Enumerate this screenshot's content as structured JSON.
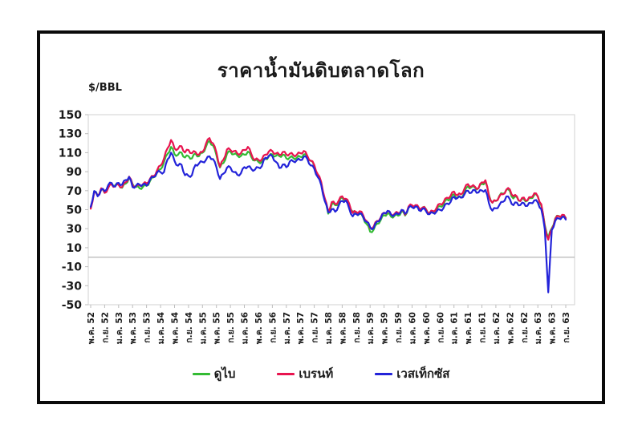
{
  "frame": {
    "title": "ราคาน้ำมันดิบตลาดโลก",
    "unit_label": "$/BBL"
  },
  "colors": {
    "dubai": "#33bb33",
    "brent": "#e8144f",
    "wti": "#2323d9",
    "frame_line": "#d2d2d2",
    "zero_line": "#aeaeae",
    "tick_line": "#bdbdbd",
    "text": "#1a1a1a",
    "box_border": "#0a0a0a"
  },
  "chart_data": {
    "type": "line",
    "title": "ราคาน้ำมันดิบตลาดโลก",
    "xlabel": "",
    "ylabel": "$/BBL",
    "ylim": [
      -50,
      150
    ],
    "y_ticks": [
      150,
      130,
      110,
      90,
      70,
      50,
      30,
      10,
      -10,
      -30,
      -50
    ],
    "grid": "zero-line-only",
    "legend_position": "bottom",
    "x_tick_every": 4,
    "x_tick_labels": [
      "พ.ค. 52",
      "ก.ย. 52",
      "ม.ค. 53",
      "พ.ค. 53",
      "ก.ย. 53",
      "ม.ค. 54",
      "พ.ค. 54",
      "ก.ย. 54",
      "ม.ค. 55",
      "พ.ค. 55",
      "ก.ย. 55",
      "ม.ค. 56",
      "พ.ค. 56",
      "ก.ย. 56",
      "ม.ค. 57",
      "พ.ค. 57",
      "ก.ย. 57",
      "ม.ค. 58",
      "พ.ค. 58",
      "ก.ย. 58",
      "ม.ค. 59",
      "พ.ค. 59",
      "ก.ย. 59",
      "ม.ค. 60",
      "พ.ค. 60",
      "ก.ย. 60",
      "ม.ค. 61",
      "พ.ค. 61",
      "ก.ย. 61",
      "ม.ค. 62",
      "พ.ค. 62",
      "ก.ย. 62",
      "ม.ค. 63",
      "พ.ค. 63",
      "ก.ย. 63"
    ],
    "series": [
      {
        "name": "ดูไบ",
        "color_key": "dubai",
        "values": [
          52.0,
          69.4,
          64.8,
          71.3,
          67.7,
          73.2,
          77.5,
          75.5,
          76.7,
          73.0,
          77.3,
          83.6,
          77.0,
          74.0,
          72.5,
          74.2,
          75.1,
          80.3,
          84.0,
          89.0,
          92.5,
          100.3,
          108.7,
          116.1,
          108.4,
          107.8,
          110.1,
          104.9,
          106.4,
          103.9,
          109.1,
          106.2,
          109.9,
          116.1,
          122.5,
          117.6,
          107.3,
          94.4,
          99.0,
          108.7,
          111.2,
          108.4,
          107.0,
          106.5,
          107.9,
          111.1,
          105.5,
          101.7,
          100.4,
          100.4,
          103.4,
          106.1,
          108.2,
          106.5,
          106.4,
          107.9,
          104.0,
          105.0,
          104.4,
          104.7,
          105.6,
          108.0,
          105.9,
          101.5,
          96.6,
          86.8,
          77.1,
          60.5,
          45.8,
          55.7,
          54.7,
          57.7,
          62.9,
          60.8,
          55.6,
          47.8,
          45.8,
          45.8,
          41.9,
          34.9,
          26.9,
          28.9,
          35.2,
          38.9,
          44.3,
          46.0,
          42.6,
          43.7,
          43.7,
          48.3,
          43.8,
          52.1,
          53.7,
          54.4,
          51.2,
          52.3,
          50.5,
          46.5,
          47.6,
          50.2,
          53.7,
          55.5,
          60.8,
          61.6,
          66.2,
          62.7,
          62.7,
          68.3,
          74.4,
          73.6,
          73.1,
          72.5,
          77.2,
          79.4,
          65.6,
          57.3,
          59.1,
          64.6,
          66.9,
          70.9,
          69.4,
          61.8,
          63.3,
          59.0,
          61.1,
          59.4,
          62.1,
          65.7,
          64.0,
          54.2,
          33.7,
          20.4,
          30.5,
          40.8,
          43.4,
          43.9,
          41.5
        ]
      },
      {
        "name": "เบรนท์",
        "color_key": "brent",
        "values": [
          51.0,
          68.6,
          64.4,
          72.5,
          67.7,
          72.8,
          76.7,
          74.5,
          76.2,
          73.8,
          78.8,
          84.8,
          75.9,
          74.8,
          75.6,
          77.1,
          77.8,
          82.7,
          85.3,
          91.4,
          96.5,
          104.0,
          114.6,
          123.3,
          114.5,
          114.0,
          116.8,
          110.2,
          112.8,
          109.5,
          110.7,
          107.9,
          110.7,
          119.3,
          125.4,
          119.8,
          110.3,
          95.2,
          102.6,
          113.4,
          112.9,
          111.7,
          109.1,
          109.5,
          112.9,
          116.1,
          108.5,
          102.3,
          102.6,
          102.9,
          107.9,
          111.3,
          111.6,
          109.1,
          107.8,
          110.8,
          108.1,
          108.9,
          107.5,
          107.8,
          109.5,
          111.8,
          106.8,
          101.6,
          97.1,
          87.4,
          79.0,
          62.3,
          47.8,
          58.1,
          55.9,
          59.5,
          64.1,
          61.5,
          56.6,
          46.5,
          47.6,
          48.4,
          44.3,
          38.0,
          30.7,
          32.2,
          38.2,
          41.6,
          46.7,
          48.3,
          44.9,
          45.7,
          46.6,
          49.5,
          44.7,
          53.3,
          54.6,
          54.9,
          51.6,
          52.3,
          50.3,
          46.4,
          48.5,
          51.7,
          56.2,
          57.5,
          62.7,
          64.4,
          69.1,
          65.3,
          66.0,
          72.1,
          76.9,
          74.4,
          74.2,
          72.5,
          78.9,
          81.0,
          64.7,
          57.4,
          59.4,
          64.0,
          66.1,
          71.2,
          71.3,
          64.2,
          63.9,
          59.0,
          62.8,
          59.7,
          63.2,
          67.3,
          63.7,
          55.7,
          32.0,
          18.4,
          29.4,
          40.3,
          43.2,
          44.7,
          40.9
        ]
      },
      {
        "name": "เวสเท็กซัส",
        "color_key": "wti",
        "values": [
          53.0,
          69.7,
          64.1,
          71.1,
          69.5,
          75.8,
          78.1,
          74.3,
          78.2,
          76.4,
          81.2,
          84.5,
          73.8,
          75.4,
          76.4,
          76.6,
          75.3,
          81.9,
          84.3,
          89.2,
          89.4,
          89.6,
          102.9,
          110.0,
          101.3,
          96.3,
          97.3,
          86.3,
          85.6,
          86.4,
          97.2,
          98.6,
          100.3,
          102.3,
          106.2,
          103.3,
          94.7,
          82.3,
          87.9,
          94.1,
          94.5,
          89.5,
          86.7,
          88.2,
          94.8,
          95.3,
          92.9,
          92.0,
          94.5,
          95.8,
          104.7,
          106.6,
          106.3,
          100.5,
          93.9,
          97.6,
          94.6,
          100.8,
          100.8,
          102.1,
          102.2,
          105.8,
          103.6,
          96.5,
          93.2,
          84.4,
          75.8,
          59.3,
          47.2,
          50.6,
          47.8,
          54.5,
          59.3,
          59.8,
          51.2,
          42.9,
          45.5,
          46.2,
          42.4,
          37.2,
          31.7,
          30.3,
          37.6,
          40.8,
          46.7,
          48.8,
          44.7,
          44.7,
          45.2,
          49.8,
          45.7,
          52.0,
          52.5,
          53.5,
          49.3,
          51.1,
          48.5,
          45.2,
          46.6,
          48.0,
          49.8,
          51.6,
          56.6,
          57.9,
          63.7,
          62.2,
          62.7,
          66.3,
          70.0,
          67.9,
          70.6,
          68.1,
          70.2,
          70.8,
          57.0,
          49.0,
          51.4,
          55.0,
          58.2,
          63.9,
          60.8,
          54.7,
          57.4,
          54.8,
          56.9,
          54.0,
          57.0,
          59.8,
          57.5,
          50.5,
          29.2,
          -37.0,
          28.6,
          38.3,
          40.8,
          42.3,
          39.6
        ]
      }
    ]
  }
}
